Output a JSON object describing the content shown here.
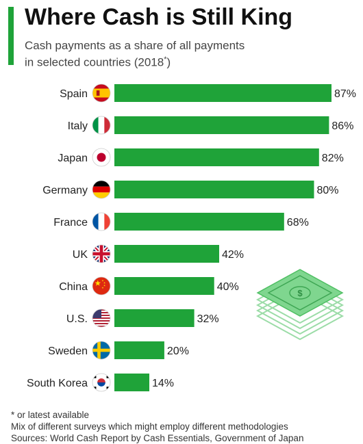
{
  "title": "Where Cash is Still King",
  "subtitle_line1": "Cash payments as a share of all payments",
  "subtitle_line2_prefix": "in selected countries (2018",
  "subtitle_marker": "*",
  "subtitle_line2_suffix": ")",
  "footnote": "* or latest available",
  "note": "Mix of different surveys which might employ different methodologies",
  "sources": "Sources: World Cash Report by Cash Essentials, Government of Japan",
  "colors": {
    "accent": "#1fa339",
    "bar": "#1fa339"
  },
  "chart_data": {
    "type": "bar",
    "orientation": "horizontal",
    "categories": [
      "Spain",
      "Italy",
      "Japan",
      "Germany",
      "France",
      "UK",
      "China",
      "U.S.",
      "Sweden",
      "South Korea"
    ],
    "values": [
      87,
      86,
      82,
      80,
      68,
      42,
      40,
      32,
      20,
      14
    ],
    "data_labels": [
      "87%",
      "86%",
      "82%",
      "80%",
      "68%",
      "42%",
      "40%",
      "32%",
      "20%",
      "14%"
    ],
    "flag_icons": [
      "spain-flag-icon",
      "italy-flag-icon",
      "japan-flag-icon",
      "germany-flag-icon",
      "france-flag-icon",
      "uk-flag-icon",
      "china-flag-icon",
      "us-flag-icon",
      "sweden-flag-icon",
      "south-korea-flag-icon"
    ],
    "unit": "%",
    "xlim": [
      0,
      100
    ],
    "grid": false,
    "legend": "none",
    "decoration": "cash-stack-icon"
  }
}
